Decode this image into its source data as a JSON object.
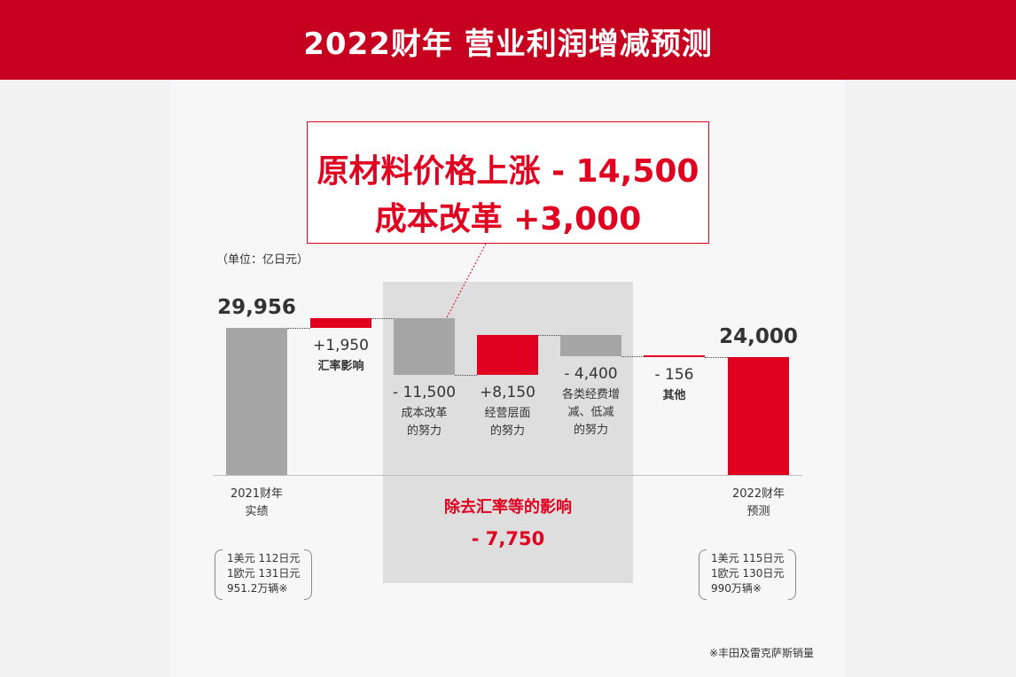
{
  "title": "2022财年 营业利润增减预测",
  "callout": {
    "line1": "原材料价格上涨 - 14,500",
    "line2": "成本改革 +3,000"
  },
  "unit_label": "（单位：亿日元）",
  "colors": {
    "red": "#e0001f",
    "title_red": "#c8001f",
    "gray": "#a6a6a6",
    "shade": "#dedede"
  },
  "chart_data": {
    "type": "waterfall",
    "title": "2022财年 营业利润增减预测",
    "unit": "亿日元",
    "steps": [
      {
        "value_label": "29,956",
        "value": 29956,
        "kind": "total",
        "color": "gray",
        "label": "2021财年\n实绩"
      },
      {
        "value_label": "+1,950",
        "value": 1950,
        "kind": "delta",
        "color": "red",
        "label": "汇率影响"
      },
      {
        "value_label": "- 11,500",
        "value": -11500,
        "kind": "delta",
        "color": "gray",
        "label": "成本改革\n的努力"
      },
      {
        "value_label": "+8,150",
        "value": 8150,
        "kind": "delta",
        "color": "red",
        "label": "经营层面\n的努力"
      },
      {
        "value_label": "- 4,400",
        "value": -4400,
        "kind": "delta",
        "color": "gray",
        "label": "各类经费增\n减、低减\n的努力"
      },
      {
        "value_label": "- 156",
        "value": -156,
        "kind": "delta",
        "color": "red",
        "label": "其他"
      },
      {
        "value_label": "24,000",
        "value": 24000,
        "kind": "total",
        "color": "red",
        "label": "2022财年\n预测"
      }
    ],
    "excluding_fx": {
      "title": "除去汇率等的影响",
      "value_label": "- 7,750",
      "value": -7750
    }
  },
  "notes": {
    "left": [
      "1美元 112日元",
      "1欧元 131日元",
      "951.2万辆※"
    ],
    "right": [
      "1美元 115日元",
      "1欧元 130日元",
      "990万辆※"
    ]
  },
  "footnote": "※丰田及雷克萨斯销量"
}
